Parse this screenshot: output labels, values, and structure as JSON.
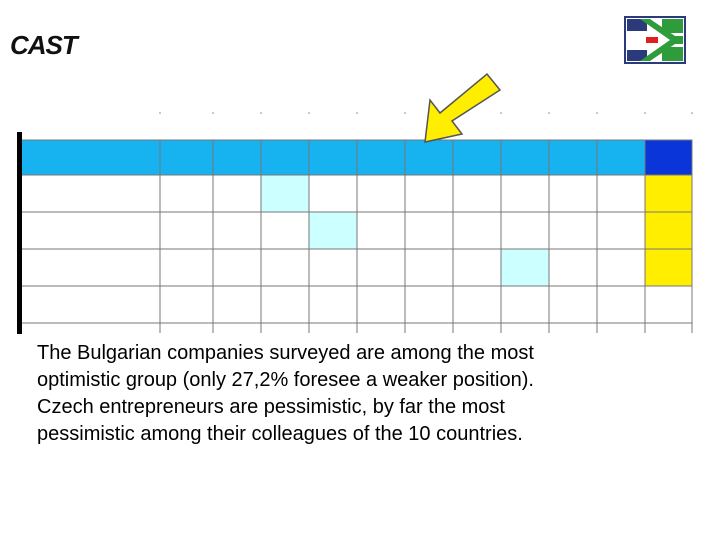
{
  "logo": {
    "text": "CAST"
  },
  "body": {
    "lines": [
      "The Bulgarian companies surveyed are among the most",
      "optimistic group (only 27,2% foresee a weaker position).",
      "Czech entrepreneurs are pessimistic, by far the most",
      "pessimistic among their colleagues of the 10 countries."
    ]
  }
}
